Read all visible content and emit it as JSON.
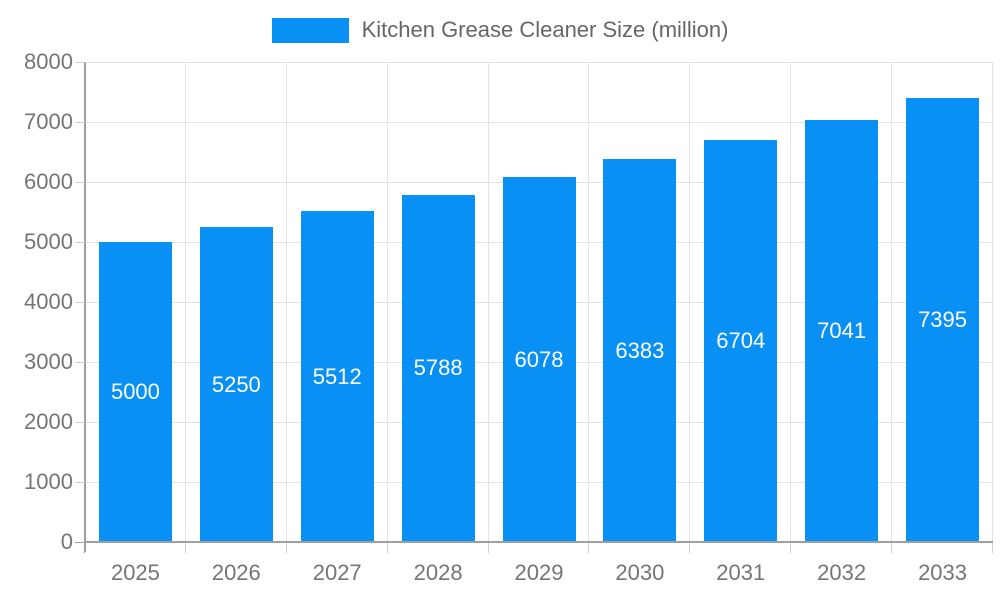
{
  "chart_data": {
    "type": "bar",
    "title": "Kitchen Grease Cleaner Size (million)",
    "categories": [
      "2025",
      "2026",
      "2027",
      "2028",
      "2029",
      "2030",
      "2031",
      "2032",
      "2033"
    ],
    "values": [
      5000,
      5250,
      5512,
      5788,
      6078,
      6383,
      6704,
      7041,
      7395
    ],
    "xlabel": "",
    "ylabel": "",
    "ylim": [
      0,
      8000
    ],
    "ytick_step": 1000,
    "ytick_labels": [
      "0",
      "1000",
      "2000",
      "3000",
      "4000",
      "5000",
      "6000",
      "7000",
      "8000"
    ],
    "grid": true,
    "legend_position": "top",
    "value_labels_inside_bars": true,
    "colors": {
      "bar": "#0990f5",
      "value_label": "#ffffff",
      "axis_tick_label": "#757575",
      "legend_text": "#666666",
      "gridline": "#e3e3e3",
      "axis_line": "#9e9e9e",
      "minor_tick": "#cfcfcf",
      "background": "#ffffff"
    }
  }
}
